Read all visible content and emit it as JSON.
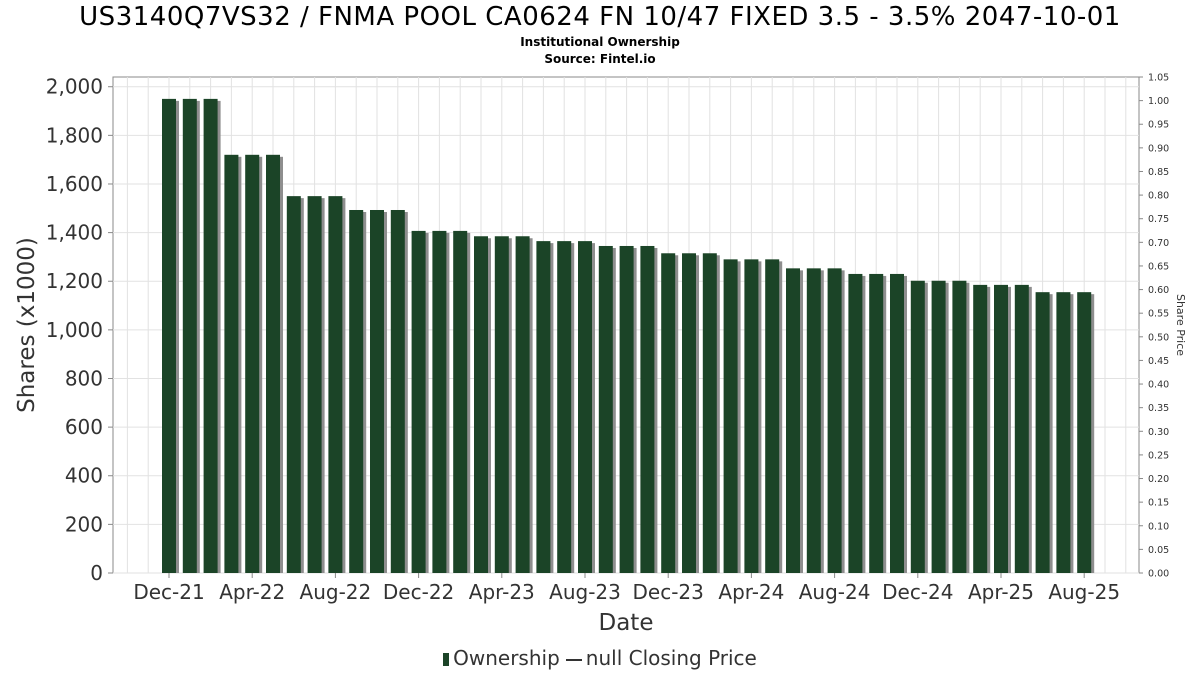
{
  "chart_data": {
    "type": "bar",
    "title": "US3140Q7VS32 / FNMA POOL CA0624 FN 10/47 FIXED 3.5 - 3.5% 2047-10-01",
    "subtitle": "Institutional Ownership",
    "source": "Source: Fintel.io",
    "xlabel": "Date",
    "ylabel": "Shares (x1000)",
    "y2label": "Share Price",
    "ylim": [
      0,
      2040
    ],
    "y2lim": [
      0,
      1.05
    ],
    "yticks": [
      0,
      200,
      400,
      600,
      800,
      1000,
      1200,
      1400,
      1600,
      1800,
      2000
    ],
    "ytick_labels": [
      "0",
      "200",
      "400",
      "600",
      "800",
      "1,000",
      "1,200",
      "1,400",
      "1,600",
      "1,800",
      "2,000"
    ],
    "y2ticks": [
      "0.00",
      "0.05",
      "0.10",
      "0.15",
      "0.20",
      "0.25",
      "0.30",
      "0.35",
      "0.40",
      "0.45",
      "0.50",
      "0.55",
      "0.60",
      "0.65",
      "0.70",
      "0.75",
      "0.80",
      "0.85",
      "0.90",
      "0.95",
      "1.00",
      "1.05"
    ],
    "xtick_labels": [
      "Dec-21",
      "Apr-22",
      "Aug-22",
      "Dec-22",
      "Apr-23",
      "Aug-23",
      "Dec-23",
      "Apr-24",
      "Aug-24",
      "Dec-24",
      "Apr-25",
      "Aug-25"
    ],
    "grid": true,
    "legend_position": "bottom",
    "series": [
      {
        "name": "Ownership",
        "color": "#1b4427",
        "values": [
          1950,
          1950,
          1950,
          1720,
          1720,
          1720,
          1550,
          1550,
          1550,
          1493,
          1493,
          1493,
          1407,
          1407,
          1407,
          1385,
          1385,
          1385,
          1365,
          1365,
          1365,
          1345,
          1345,
          1345,
          1315,
          1315,
          1315,
          1290,
          1290,
          1290,
          1253,
          1253,
          1253,
          1230,
          1230,
          1230,
          1202,
          1202,
          1202,
          1185,
          1185,
          1185,
          1155,
          1155,
          1155
        ]
      },
      {
        "name": "null Closing Price",
        "color": "#333333",
        "values": []
      }
    ]
  }
}
